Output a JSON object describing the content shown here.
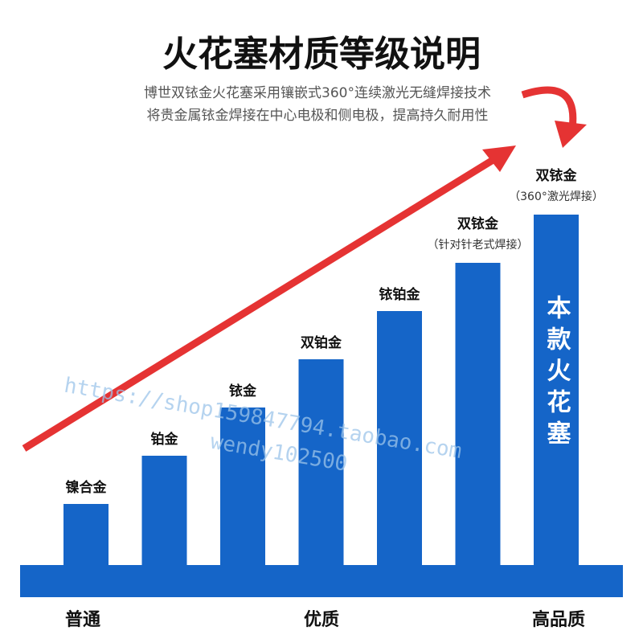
{
  "header": {
    "title": "火花塞材质等级说明",
    "subtitle": [
      "博世双铱金火花塞采用镶嵌式360°连续激光无缝焊接技术",
      "将贵金属铱金焊接在中心电极和侧电极，提高持久耐用性"
    ]
  },
  "bars": [
    {
      "label": "镍合金"
    },
    {
      "label": "铂金"
    },
    {
      "label": "铱金"
    },
    {
      "label": "双铂金"
    },
    {
      "label": "铱铂金"
    },
    {
      "label": "双铱金",
      "note": "（针对针老式焊接）"
    },
    {
      "label": "双铱金",
      "note": "（360°激光焊接）",
      "inner": "本款火花塞"
    }
  ],
  "scale_labels": [
    "普通",
    "优质",
    "高品质"
  ],
  "watermark": [
    "https://shop159847794.taobao.com",
    "wendy102500"
  ]
}
